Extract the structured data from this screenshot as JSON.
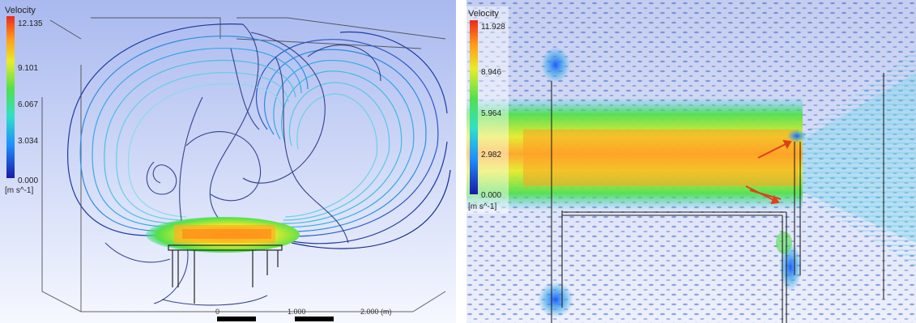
{
  "left": {
    "legend": {
      "title": "Velocity",
      "ticks": [
        "12.135",
        "9.101",
        "6.067",
        "3.034",
        "0.000"
      ],
      "unit": "[m s^-1]"
    },
    "scale": {
      "labels": [
        "0",
        "1.000",
        "2.000 (m)"
      ]
    }
  },
  "right": {
    "legend": {
      "title": "Velocity",
      "ticks": [
        "11.928",
        "8.946",
        "5.964",
        "2.982",
        "0.000"
      ],
      "unit": "[m s^-1]"
    }
  },
  "colors": {
    "background_top": "#b7c4f2",
    "background_bottom": "#ffffff",
    "colormap": [
      "#1a1aa8",
      "#1f8cff",
      "#30e0c8",
      "#52e04c",
      "#e8ec2a",
      "#ff9b1a",
      "#e82a1a"
    ]
  }
}
